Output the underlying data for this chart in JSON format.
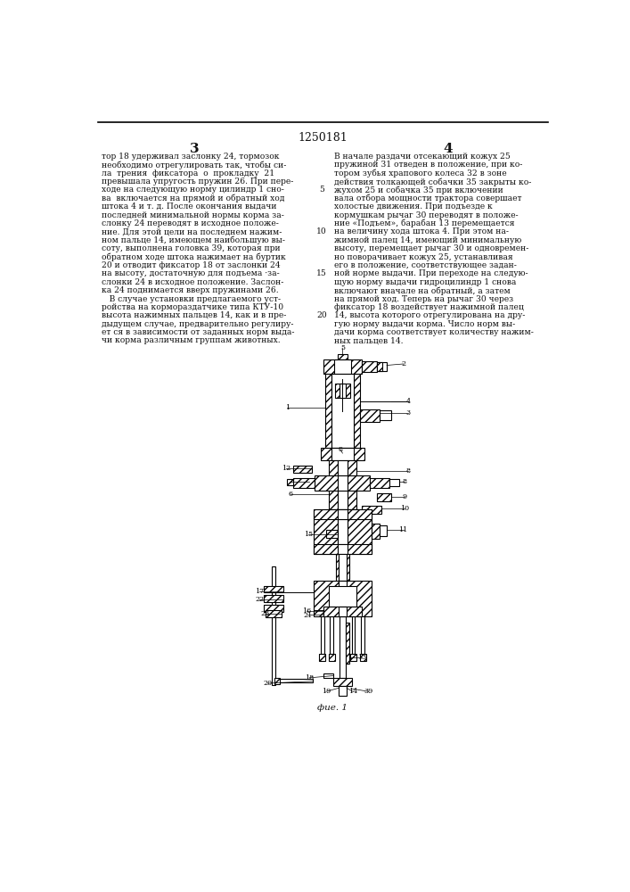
{
  "patent_number": "1250181",
  "col_left_num": "3",
  "col_right_num": "4",
  "fig_caption": "фие. 1",
  "text_left_lines": [
    "тор 18 удерживал заслонку 24, тормозок",
    "необходимо отрегулировать так, чтобы си-",
    "ла  трения  фиксатора  о  прокладку  21",
    "превышала упругость пружин 26. При пере-",
    "ходе на следующую норму цилиндр 1 сно-",
    "ва  включается на прямой и обратный ход",
    "штока 4 и т. д. После окончания выдачи",
    "последней минимальной нормы корма за-",
    "слонку 24 переводят в исходное положе-",
    "ние. Для этой цели на последнем нажим-",
    "ном пальце 14, имеющем наибольшую вы-",
    "соту, выполнена головка 39, которая при",
    "обратном ходе штока нажимает на буртик",
    "20 и отводит фиксатор 18 от заслонки 24",
    "на высоту, достаточную для подъема ·за-",
    "слонки 24 в исходное положение. Заслон-",
    "ка 24 поднимается вверх пружинами 26.",
    "   В случае установки предлагаемого уст-",
    "ройства на кормораздатчике типа КТУ-10",
    "высота нажимных пальцев 14, как и в пре-",
    "дыдущем случае, предварительно регулиру-",
    "ет ся в зависимости от заданных норм выда-",
    "чи корма различным группам животных."
  ],
  "text_right_lines": [
    "В начале раздачи отсекающий кожух 25",
    "пружиной 31 отведен в положение, при ко-",
    "тором зубья храпового колеса 32 в зоне",
    "действия толкающей собачки 35 закрыты ко-",
    "жухом 25 и собачка 35 при включении",
    "вала отбора мощности трактора совершает",
    "холостые движения. При подъезде к",
    "кормушкам рычаг 30 переводят в положе-",
    "ние «Подъем», барабан 13 перемещается",
    "на величину хода штока 4. При этом на-",
    "жимной палец 14, имеющий минимальную",
    "высоту, перемещает рычаг 30 и одновремен-",
    "но поворачивает кожух 25, устанавливая",
    "его в положение, соответствующее задан-",
    "ной норме выдачи. При переходе на следую-",
    "щую норму выдачи гидроцилиндр 1 снова",
    "включают вначале на обратный, а затем",
    "на прямой ход. Теперь на рычаг 30 через",
    "фиксатор 18 воздействует нажимной палец",
    "14, высота которого отрегулирована на дру-",
    "гую норму выдачи корма. Число норм вы-",
    "дачи корма соответствует количеству нажим-",
    "ных пальцев 14."
  ],
  "line_numbers": [
    [
      4,
      "5"
    ],
    [
      9,
      "10"
    ],
    [
      14,
      "15"
    ],
    [
      19,
      "20"
    ]
  ],
  "bg_color": "#ffffff",
  "text_color": "#111111",
  "border_color": "#000000"
}
